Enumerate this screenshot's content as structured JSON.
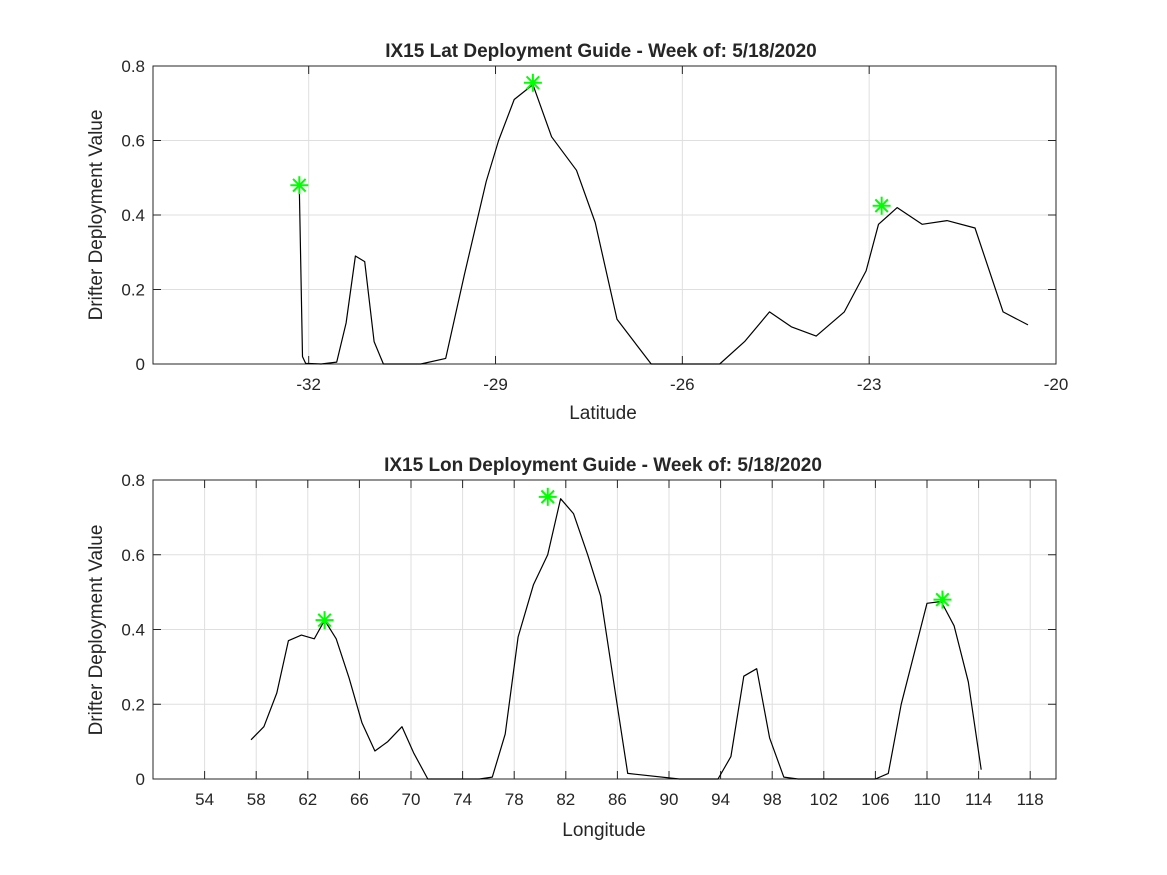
{
  "chart_data": [
    {
      "type": "line",
      "title": "IX15 Lat Deployment Guide - Week of: 5/18/2020",
      "xlabel": "Latitude",
      "ylabel": "Drifter Deployment Value",
      "xlim": [
        -34.5,
        -20
      ],
      "ylim": [
        0,
        0.8
      ],
      "xticks": [
        -32,
        -29,
        -26,
        -23,
        -20
      ],
      "xtick_labels": [
        "-32",
        "-29",
        "-26",
        "-23",
        "-20"
      ],
      "yticks": [
        0,
        0.2,
        0.4,
        0.6,
        0.8
      ],
      "ytick_labels": [
        "0",
        "0.2",
        "0.4",
        "0.6",
        "0.8"
      ],
      "grid": true,
      "series": [
        {
          "line_color": "#000000",
          "x": [
            -32.15,
            -32.1,
            -32.05,
            -31.8,
            -31.55,
            -31.4,
            -31.25,
            -31.1,
            -30.95,
            -30.8,
            -30.2,
            -29.8,
            -29.5,
            -29.15,
            -28.95,
            -28.7,
            -28.4,
            -28.1,
            -27.7,
            -27.4,
            -27.05,
            -26.5,
            -25.9,
            -25.4,
            -25.0,
            -24.6,
            -24.25,
            -23.85,
            -23.4,
            -23.05,
            -22.85,
            -22.55,
            -22.15,
            -21.75,
            -21.3,
            -20.85,
            -20.45
          ],
          "y": [
            0.475,
            0.02,
            0.002,
            0.0,
            0.005,
            0.11,
            0.29,
            0.275,
            0.06,
            0.0,
            0.0,
            0.015,
            0.24,
            0.49,
            0.6,
            0.71,
            0.75,
            0.61,
            0.52,
            0.38,
            0.12,
            0.0,
            0.0,
            0.0,
            0.06,
            0.14,
            0.1,
            0.075,
            0.14,
            0.25,
            0.375,
            0.42,
            0.375,
            0.385,
            0.365,
            0.14,
            0.105
          ]
        }
      ],
      "markers": {
        "color": "#00ff00",
        "symbol": "asterisk",
        "x": [
          -32.15,
          -28.4,
          -22.8
        ],
        "y": [
          0.48,
          0.755,
          0.425
        ]
      }
    },
    {
      "type": "line",
      "title": "IX15 Lon Deployment Guide - Week of: 5/18/2020",
      "xlabel": "Longitude",
      "ylabel": "Drifter Deployment Value",
      "xlim": [
        50,
        120
      ],
      "ylim": [
        0,
        0.8
      ],
      "xticks": [
        54,
        58,
        62,
        66,
        70,
        74,
        78,
        82,
        86,
        90,
        94,
        98,
        102,
        106,
        110,
        114,
        118
      ],
      "xtick_labels": [
        "54",
        "58",
        "62",
        "66",
        "70",
        "74",
        "78",
        "82",
        "86",
        "90",
        "94",
        "98",
        "102",
        "106",
        "110",
        "114",
        "118"
      ],
      "yticks": [
        0,
        0.2,
        0.4,
        0.6,
        0.8
      ],
      "ytick_labels": [
        "0",
        "0.2",
        "0.4",
        "0.6",
        "0.8"
      ],
      "grid": true,
      "series": [
        {
          "line_color": "#000000",
          "x": [
            57.6,
            58.6,
            59.6,
            60.5,
            61.5,
            62.5,
            63.3,
            64.2,
            65.2,
            66.2,
            67.2,
            68.2,
            69.3,
            70.2,
            71.3,
            72.3,
            75.3,
            76.3,
            77.3,
            78.3,
            79.5,
            80.6,
            81.6,
            82.6,
            83.7,
            84.7,
            85.8,
            86.8,
            90.8,
            92.8,
            93.8,
            94.8,
            95.8,
            96.8,
            97.8,
            98.9,
            100.0,
            106.0,
            107.0,
            108.0,
            110.0,
            111.1,
            112.1,
            113.2,
            114.2
          ],
          "y": [
            0.105,
            0.14,
            0.23,
            0.37,
            0.385,
            0.375,
            0.425,
            0.375,
            0.27,
            0.15,
            0.075,
            0.1,
            0.14,
            0.07,
            0.0,
            0.0,
            0.0,
            0.005,
            0.12,
            0.38,
            0.52,
            0.6,
            0.75,
            0.71,
            0.6,
            0.49,
            0.24,
            0.015,
            0.0,
            0.0,
            0.0,
            0.06,
            0.275,
            0.295,
            0.11,
            0.005,
            0.0,
            0.0,
            0.015,
            0.2,
            0.47,
            0.475,
            0.41,
            0.26,
            0.025
          ]
        }
      ],
      "markers": {
        "color": "#00ff00",
        "symbol": "asterisk",
        "x": [
          63.3,
          80.6,
          111.2
        ],
        "y": [
          0.425,
          0.755,
          0.48
        ]
      }
    }
  ]
}
